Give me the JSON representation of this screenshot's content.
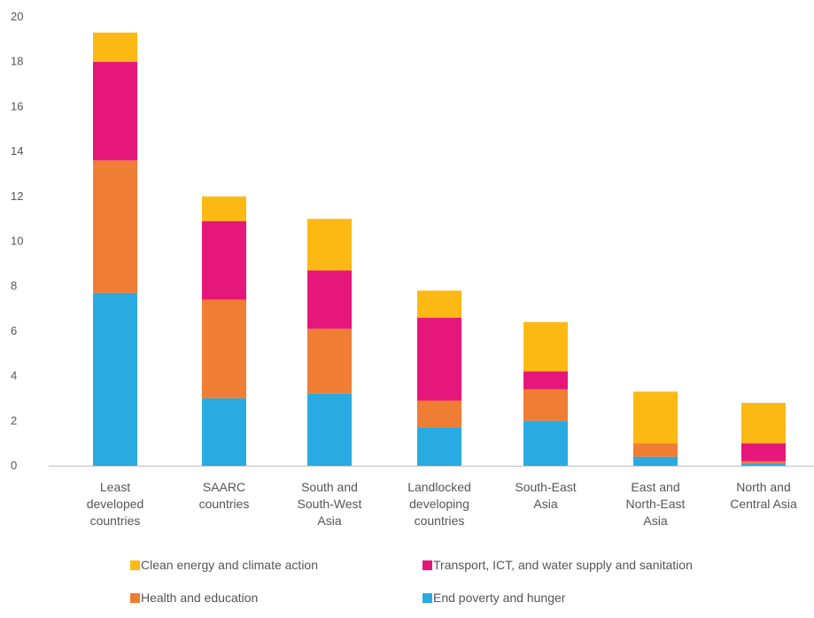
{
  "chart_data": {
    "type": "bar",
    "stacked": true,
    "categories": [
      [
        "Least",
        "developed",
        "countries"
      ],
      [
        "SAARC",
        "countries"
      ],
      [
        "South and",
        "South-West",
        "Asia"
      ],
      [
        "Landlocked",
        "developing",
        "countries"
      ],
      [
        "South-East",
        "Asia"
      ],
      [
        "East and",
        "North-East",
        "Asia"
      ],
      [
        "North and",
        "Central Asia"
      ]
    ],
    "series": [
      {
        "name": "End poverty and hunger",
        "color": "#29ABE2",
        "values": [
          7.7,
          3.0,
          3.2,
          1.7,
          2.0,
          0.4,
          0.1
        ]
      },
      {
        "name": "Health and education",
        "color": "#EF7D34",
        "values": [
          5.9,
          4.4,
          2.9,
          1.2,
          1.4,
          0.6,
          0.1
        ]
      },
      {
        "name": "Transport, ICT, and water supply and sanitation",
        "color": "#E6177A",
        "values": [
          4.4,
          3.5,
          2.6,
          3.7,
          0.8,
          0.0,
          0.8
        ]
      },
      {
        "name": "Clean energy and climate action",
        "color": "#FDB913",
        "values": [
          1.3,
          1.1,
          2.3,
          1.2,
          2.2,
          2.3,
          1.8
        ]
      }
    ],
    "yticks": [
      "0",
      "2",
      "4",
      "6",
      "8",
      "10",
      "12",
      "14",
      "16",
      "18",
      "20"
    ],
    "ylim": [
      0,
      20
    ],
    "grid": false,
    "legend": {
      "position": "bottom",
      "order": [
        3,
        2,
        1,
        0
      ]
    }
  }
}
